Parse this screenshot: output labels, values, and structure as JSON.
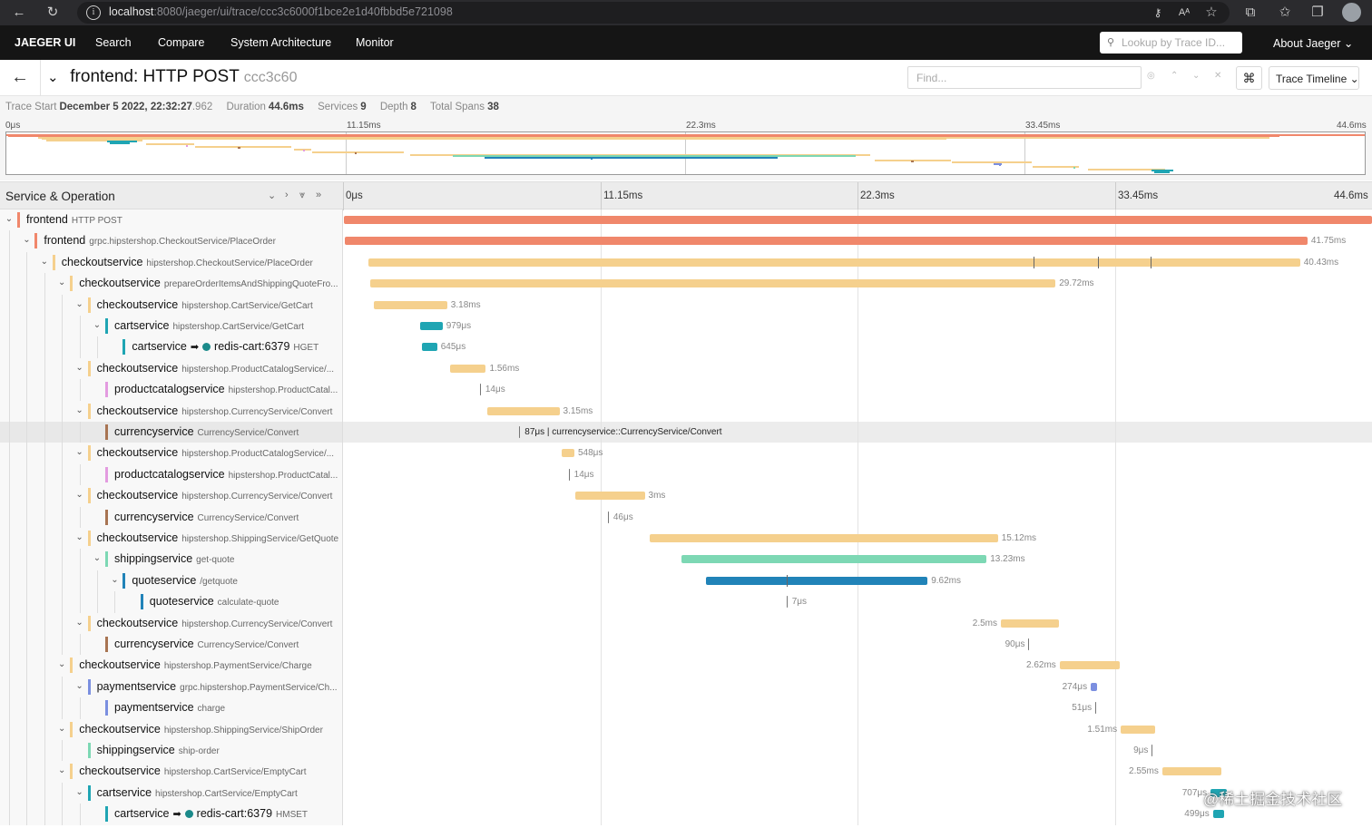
{
  "browser": {
    "url_host": "localhost",
    "url_rest": ":8080/jaeger/ui/trace/ccc3c6000f1bce2e1d40fbbd5e721098"
  },
  "nav": {
    "brand": "JAEGER UI",
    "items": [
      "Search",
      "Compare",
      "System Architecture",
      "Monitor"
    ],
    "lookup_placeholder": "Lookup by Trace ID...",
    "about": "About Jaeger ⌄"
  },
  "trace": {
    "title_service": "frontend: HTTP POST",
    "title_id": "ccc3c60",
    "find_placeholder": "Find...",
    "view_mode": "Trace Timeline ⌄"
  },
  "meta": {
    "start_label": "Trace Start",
    "start_value": "December 5 2022, 22:32:27",
    "start_ms": ".962",
    "duration_label": "Duration",
    "duration_value": "44.6ms",
    "services_label": "Services",
    "services_value": "9",
    "depth_label": "Depth",
    "depth_value": "8",
    "spans_label": "Total Spans",
    "spans_value": "38"
  },
  "ticks": [
    "0μs",
    "11.15ms",
    "22.3ms",
    "33.45ms",
    "44.6ms"
  ],
  "total_ms": 44.6,
  "column_title": "Service & Operation",
  "colors": {
    "frontend": "#f0876b",
    "checkoutservice": "#f5d08d",
    "cartservice": "#1fa5b3",
    "productcatalogservice": "#e39be0",
    "currencyservice": "#a87452",
    "shippingservice": "#7dd8b4",
    "quoteservice": "#2183b8",
    "paymentservice": "#7b8fe0"
  },
  "spans": [
    {
      "depth": 0,
      "toggle": true,
      "service": "frontend",
      "op": "HTTP POST",
      "color": "frontend",
      "start": 0,
      "dur": 44.6,
      "label": "",
      "label_side": "none"
    },
    {
      "depth": 1,
      "toggle": true,
      "service": "frontend",
      "op": "grpc.hipstershop.CheckoutService/PlaceOrder",
      "color": "frontend",
      "start": 0.05,
      "dur": 41.75,
      "label": "41.75ms",
      "label_side": "right"
    },
    {
      "depth": 2,
      "toggle": true,
      "service": "checkoutservice",
      "op": "hipstershop.CheckoutService/PlaceOrder",
      "color": "checkoutservice",
      "start": 1.05,
      "dur": 40.43,
      "label": "40.43ms",
      "label_side": "right",
      "ticks": [
        29.9,
        32.7,
        35.0
      ]
    },
    {
      "depth": 3,
      "toggle": true,
      "service": "checkoutservice",
      "op": "prepareOrderItemsAndShippingQuoteFro...",
      "color": "checkoutservice",
      "start": 1.15,
      "dur": 29.72,
      "label": "29.72ms",
      "label_side": "right"
    },
    {
      "depth": 4,
      "toggle": true,
      "service": "checkoutservice",
      "op": "hipstershop.CartService/GetCart",
      "color": "checkoutservice",
      "start": 1.3,
      "dur": 3.18,
      "label": "3.18ms",
      "label_side": "right"
    },
    {
      "depth": 5,
      "toggle": true,
      "service": "cartservice",
      "op": "hipstershop.CartService/GetCart",
      "color": "cartservice",
      "start": 3.3,
      "dur": 0.979,
      "label": "979μs",
      "label_side": "right"
    },
    {
      "depth": 6,
      "toggle": false,
      "service": "cartservice",
      "op": "HGET",
      "peer": "redis-cart:6379",
      "color": "cartservice",
      "start": 3.4,
      "dur": 0.645,
      "label": "645μs",
      "label_side": "right"
    },
    {
      "depth": 4,
      "toggle": true,
      "service": "checkoutservice",
      "op": "hipstershop.ProductCatalogService/...",
      "color": "checkoutservice",
      "start": 4.6,
      "dur": 1.56,
      "label": "1.56ms",
      "label_side": "right"
    },
    {
      "depth": 5,
      "toggle": false,
      "service": "productcatalogservice",
      "op": "hipstershop.ProductCatal...",
      "color": "productcatalogservice",
      "start": 5.9,
      "dur": 0.014,
      "label": "14μs",
      "label_side": "right"
    },
    {
      "depth": 4,
      "toggle": true,
      "service": "checkoutservice",
      "op": "hipstershop.CurrencyService/Convert",
      "color": "checkoutservice",
      "start": 6.2,
      "dur": 3.15,
      "label": "3.15ms",
      "label_side": "right"
    },
    {
      "depth": 5,
      "toggle": false,
      "service": "currencyservice",
      "op": "CurrencyService/Convert",
      "color": "currencyservice",
      "start": 7.6,
      "dur": 0.087,
      "label": "87μs | currencyservice::CurrencyService/Convert",
      "label_side": "right",
      "highlight": true
    },
    {
      "depth": 4,
      "toggle": true,
      "service": "checkoutservice",
      "op": "hipstershop.ProductCatalogService/...",
      "color": "checkoutservice",
      "start": 9.45,
      "dur": 0.548,
      "label": "548μs",
      "label_side": "right"
    },
    {
      "depth": 5,
      "toggle": false,
      "service": "productcatalogservice",
      "op": "hipstershop.ProductCatal...",
      "color": "productcatalogservice",
      "start": 9.75,
      "dur": 0.014,
      "label": "14μs",
      "label_side": "right"
    },
    {
      "depth": 4,
      "toggle": true,
      "service": "checkoutservice",
      "op": "hipstershop.CurrencyService/Convert",
      "color": "checkoutservice",
      "start": 10.05,
      "dur": 3.0,
      "label": "3ms",
      "label_side": "right"
    },
    {
      "depth": 5,
      "toggle": false,
      "service": "currencyservice",
      "op": "CurrencyService/Convert",
      "color": "currencyservice",
      "start": 11.45,
      "dur": 0.046,
      "label": "46μs",
      "label_side": "right"
    },
    {
      "depth": 4,
      "toggle": true,
      "service": "checkoutservice",
      "op": "hipstershop.ShippingService/GetQuote",
      "color": "checkoutservice",
      "start": 13.25,
      "dur": 15.12,
      "label": "15.12ms",
      "label_side": "right"
    },
    {
      "depth": 5,
      "toggle": true,
      "service": "shippingservice",
      "op": "get-quote",
      "color": "shippingservice",
      "start": 14.65,
      "dur": 13.23,
      "label": "13.23ms",
      "label_side": "right"
    },
    {
      "depth": 6,
      "toggle": true,
      "service": "quoteservice",
      "op": "/getquote",
      "color": "quoteservice",
      "start": 15.7,
      "dur": 9.62,
      "label": "9.62ms",
      "label_side": "right",
      "ticks": [
        19.2
      ]
    },
    {
      "depth": 7,
      "toggle": false,
      "service": "quoteservice",
      "op": "calculate-quote",
      "color": "quoteservice",
      "start": 19.2,
      "dur": 0.007,
      "label": "7μs",
      "label_side": "right"
    },
    {
      "depth": 4,
      "toggle": true,
      "service": "checkoutservice",
      "op": "hipstershop.CurrencyService/Convert",
      "color": "checkoutservice",
      "start": 28.5,
      "dur": 2.5,
      "label": "2.5ms",
      "label_side": "left"
    },
    {
      "depth": 5,
      "toggle": false,
      "service": "currencyservice",
      "op": "CurrencyService/Convert",
      "color": "currencyservice",
      "start": 29.7,
      "dur": 0.09,
      "label": "90μs",
      "label_side": "left"
    },
    {
      "depth": 3,
      "toggle": true,
      "service": "checkoutservice",
      "op": "hipstershop.PaymentService/Charge",
      "color": "checkoutservice",
      "start": 31.05,
      "dur": 2.62,
      "label": "2.62ms",
      "label_side": "left"
    },
    {
      "depth": 4,
      "toggle": true,
      "service": "paymentservice",
      "op": "grpc.hipstershop.PaymentService/Ch...",
      "color": "paymentservice",
      "start": 32.4,
      "dur": 0.274,
      "label": "274μs",
      "label_side": "left"
    },
    {
      "depth": 5,
      "toggle": false,
      "service": "paymentservice",
      "op": "charge",
      "color": "paymentservice",
      "start": 32.6,
      "dur": 0.051,
      "label": "51μs",
      "label_side": "left"
    },
    {
      "depth": 3,
      "toggle": true,
      "service": "checkoutservice",
      "op": "hipstershop.ShippingService/ShipOrder",
      "color": "checkoutservice",
      "start": 33.7,
      "dur": 1.51,
      "label": "1.51ms",
      "label_side": "left"
    },
    {
      "depth": 4,
      "toggle": false,
      "service": "shippingservice",
      "op": "ship-order",
      "color": "shippingservice",
      "start": 35.05,
      "dur": 0.009,
      "label": "9μs",
      "label_side": "left"
    },
    {
      "depth": 3,
      "toggle": true,
      "service": "checkoutservice",
      "op": "hipstershop.CartService/EmptyCart",
      "color": "checkoutservice",
      "start": 35.5,
      "dur": 2.55,
      "label": "2.55ms",
      "label_side": "left"
    },
    {
      "depth": 4,
      "toggle": true,
      "service": "cartservice",
      "op": "hipstershop.CartService/EmptyCart",
      "color": "cartservice",
      "start": 37.6,
      "dur": 0.707,
      "label": "707μs",
      "label_side": "left"
    },
    {
      "depth": 5,
      "toggle": false,
      "service": "cartservice",
      "op": "HMSET",
      "peer": "redis-cart:6379",
      "color": "cartservice",
      "start": 37.7,
      "dur": 0.499,
      "label": "499μs",
      "label_side": "left"
    }
  ],
  "watermark": "@稀土掘金技术社区"
}
